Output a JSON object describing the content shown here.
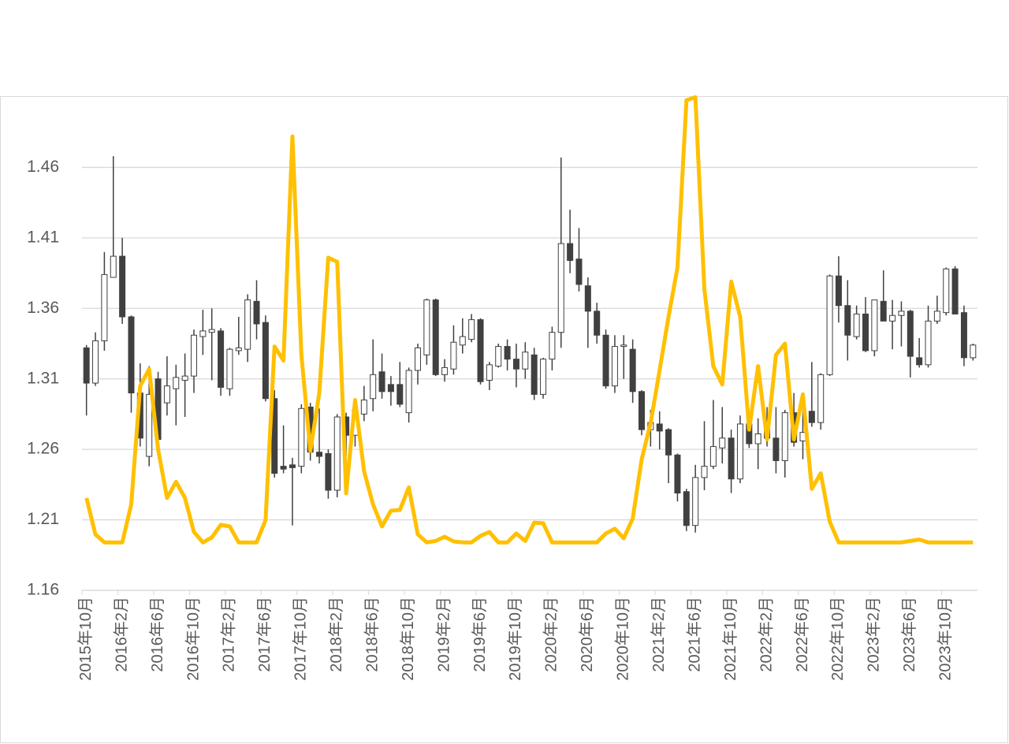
{
  "chart_data": {
    "type": "candlestick",
    "categories": [
      "2015年10月",
      null,
      null,
      null,
      "2016年2月",
      null,
      null,
      null,
      "2016年6月",
      null,
      null,
      null,
      "2016年10月",
      null,
      null,
      null,
      "2017年2月",
      null,
      null,
      null,
      "2017年6月",
      null,
      null,
      null,
      "2017年10月",
      null,
      null,
      null,
      "2018年2月",
      null,
      null,
      null,
      "2018年6月",
      null,
      null,
      null,
      "2018年10月",
      null,
      null,
      null,
      "2019年2月",
      null,
      null,
      null,
      "2019年6月",
      null,
      null,
      null,
      "2019年10月",
      null,
      null,
      null,
      "2020年2月",
      null,
      null,
      null,
      "2020年6月",
      null,
      null,
      null,
      "2020年10月",
      null,
      null,
      null,
      "2021年2月",
      null,
      null,
      null,
      "2021年6月",
      null,
      null,
      null,
      "2021年10月",
      null,
      null,
      null,
      "2022年2月",
      null,
      null,
      null,
      "2022年6月",
      null,
      null,
      null,
      "2022年10月",
      null,
      null,
      null,
      "2023年2月",
      null,
      null,
      null,
      "2023年6月",
      null,
      null,
      null,
      "2023年10月",
      null,
      null,
      null
    ],
    "series": [
      {
        "type": "candlestick",
        "up_color": "#ffffff",
        "down_color": "#404040",
        "edge_color": "#404040",
        "open": [
          1.332,
          1.307,
          1.337,
          1.382,
          1.397,
          1.354,
          1.3,
          1.255,
          1.31,
          1.293,
          1.303,
          1.309,
          1.312,
          1.34,
          1.343,
          1.344,
          1.303,
          1.33,
          1.331,
          1.365,
          1.35,
          1.296,
          1.248,
          1.249,
          1.248,
          1.29,
          1.258,
          1.257,
          1.231,
          1.283,
          1.27,
          1.285,
          1.296,
          1.315,
          1.306,
          1.306,
          1.286,
          1.316,
          1.327,
          1.366,
          1.313,
          1.317,
          1.334,
          1.338,
          1.352,
          1.309,
          1.319,
          1.333,
          1.324,
          1.317,
          1.327,
          1.299,
          1.324,
          1.343,
          1.406,
          1.395,
          1.376,
          1.358,
          1.341,
          1.305,
          1.333,
          1.331,
          1.301,
          1.274,
          1.278,
          1.274,
          1.256,
          1.23,
          1.206,
          1.24,
          1.248,
          1.261,
          1.268,
          1.239,
          1.278,
          1.264,
          1.275,
          1.268,
          1.252,
          1.286,
          1.266,
          1.287,
          1.279,
          1.313,
          1.383,
          1.362,
          1.34,
          1.356,
          1.33,
          1.365,
          1.351,
          1.355,
          1.358,
          1.325,
          1.32,
          1.351,
          1.357,
          1.388,
          1.357,
          1.325
        ],
        "high": [
          1.334,
          1.343,
          1.4,
          1.468,
          1.41,
          1.355,
          1.321,
          1.319,
          1.315,
          1.326,
          1.32,
          1.328,
          1.345,
          1.359,
          1.36,
          1.346,
          1.332,
          1.354,
          1.37,
          1.38,
          1.355,
          1.302,
          1.277,
          1.254,
          1.292,
          1.293,
          1.289,
          1.26,
          1.285,
          1.286,
          1.292,
          1.305,
          1.338,
          1.328,
          1.312,
          1.322,
          1.318,
          1.335,
          1.367,
          1.367,
          1.324,
          1.348,
          1.353,
          1.356,
          1.353,
          1.322,
          1.335,
          1.338,
          1.335,
          1.336,
          1.332,
          1.325,
          1.347,
          1.467,
          1.43,
          1.417,
          1.382,
          1.364,
          1.345,
          1.341,
          1.341,
          1.338,
          1.302,
          1.288,
          1.287,
          1.275,
          1.257,
          1.232,
          1.249,
          1.28,
          1.295,
          1.29,
          1.274,
          1.284,
          1.281,
          1.282,
          1.29,
          1.29,
          1.288,
          1.3,
          1.3,
          1.322,
          1.314,
          1.384,
          1.397,
          1.38,
          1.362,
          1.368,
          1.366,
          1.387,
          1.366,
          1.365,
          1.359,
          1.339,
          1.362,
          1.369,
          1.389,
          1.39,
          1.362,
          1.335
        ],
        "low": [
          1.284,
          1.305,
          1.33,
          1.382,
          1.349,
          1.286,
          1.262,
          1.248,
          1.262,
          1.284,
          1.277,
          1.283,
          1.3,
          1.327,
          1.309,
          1.298,
          1.298,
          1.327,
          1.322,
          1.338,
          1.294,
          1.24,
          1.243,
          1.206,
          1.243,
          1.252,
          1.25,
          1.225,
          1.226,
          1.255,
          1.262,
          1.28,
          1.287,
          1.296,
          1.291,
          1.29,
          1.279,
          1.306,
          1.32,
          1.312,
          1.308,
          1.313,
          1.328,
          1.336,
          1.306,
          1.302,
          1.318,
          1.316,
          1.304,
          1.31,
          1.295,
          1.296,
          1.316,
          1.332,
          1.385,
          1.372,
          1.332,
          1.335,
          1.303,
          1.3,
          1.31,
          1.293,
          1.27,
          1.262,
          1.26,
          1.236,
          1.223,
          1.202,
          1.201,
          1.231,
          1.246,
          1.25,
          1.229,
          1.236,
          1.261,
          1.246,
          1.262,
          1.243,
          1.24,
          1.262,
          1.253,
          1.276,
          1.274,
          1.312,
          1.35,
          1.323,
          1.338,
          1.329,
          1.326,
          1.351,
          1.331,
          1.333,
          1.311,
          1.318,
          1.318,
          1.349,
          1.355,
          1.356,
          1.319,
          1.323
        ],
        "close": [
          1.307,
          1.337,
          1.384,
          1.397,
          1.354,
          1.3,
          1.268,
          1.299,
          1.267,
          1.305,
          1.311,
          1.312,
          1.341,
          1.344,
          1.345,
          1.304,
          1.331,
          1.332,
          1.366,
          1.349,
          1.296,
          1.243,
          1.246,
          1.247,
          1.289,
          1.258,
          1.255,
          1.231,
          1.283,
          1.27,
          1.288,
          1.295,
          1.313,
          1.301,
          1.301,
          1.292,
          1.316,
          1.332,
          1.366,
          1.313,
          1.318,
          1.336,
          1.34,
          1.352,
          1.308,
          1.32,
          1.333,
          1.324,
          1.317,
          1.329,
          1.299,
          1.324,
          1.343,
          1.406,
          1.394,
          1.377,
          1.358,
          1.341,
          1.305,
          1.333,
          1.334,
          1.301,
          1.274,
          1.279,
          1.273,
          1.256,
          1.229,
          1.206,
          1.24,
          1.248,
          1.262,
          1.268,
          1.239,
          1.278,
          1.264,
          1.271,
          1.268,
          1.252,
          1.286,
          1.265,
          1.272,
          1.279,
          1.313,
          1.383,
          1.362,
          1.341,
          1.356,
          1.33,
          1.366,
          1.351,
          1.355,
          1.358,
          1.326,
          1.32,
          1.351,
          1.358,
          1.388,
          1.356,
          1.325,
          1.334
        ]
      },
      {
        "type": "line",
        "color": "#ffc000",
        "values": [
          1.2255,
          1.1997,
          1.194,
          1.194,
          1.194,
          1.221,
          1.305,
          1.317,
          1.26,
          1.2255,
          1.237,
          1.2255,
          1.2014,
          1.194,
          1.1975,
          1.2065,
          1.2053,
          1.194,
          1.194,
          1.194,
          1.2098,
          1.333,
          1.323,
          1.482,
          1.327,
          1.259,
          1.3,
          1.396,
          1.393,
          1.2288,
          1.295,
          1.2445,
          1.221,
          1.2053,
          1.2165,
          1.217,
          1.233,
          1.1997,
          1.194,
          1.195,
          1.198,
          1.1947,
          1.194,
          1.194,
          1.1986,
          1.2014,
          1.194,
          1.194,
          1.2003,
          1.195,
          1.208,
          1.2076,
          1.194,
          1.194,
          1.194,
          1.194,
          1.194,
          1.194,
          1.2003,
          1.2037,
          1.1969,
          1.2109,
          1.2529,
          1.2787,
          1.316,
          1.354,
          1.389,
          1.5076,
          1.5098,
          1.374,
          1.319,
          1.306,
          1.379,
          1.354,
          1.274,
          1.319,
          1.267,
          1.327,
          1.335,
          1.267,
          1.299,
          1.232,
          1.243,
          1.2087,
          1.194,
          1.194,
          1.194,
          1.194,
          1.194,
          1.194,
          1.194,
          1.194,
          1.195,
          1.196,
          1.194,
          1.194,
          1.194,
          1.194,
          1.194,
          1.194
        ]
      }
    ],
    "ylim": [
      1.16,
      1.51
    ],
    "yticks": [
      1.16,
      1.21,
      1.26,
      1.31,
      1.36,
      1.41,
      1.46
    ],
    "grid": true
  }
}
